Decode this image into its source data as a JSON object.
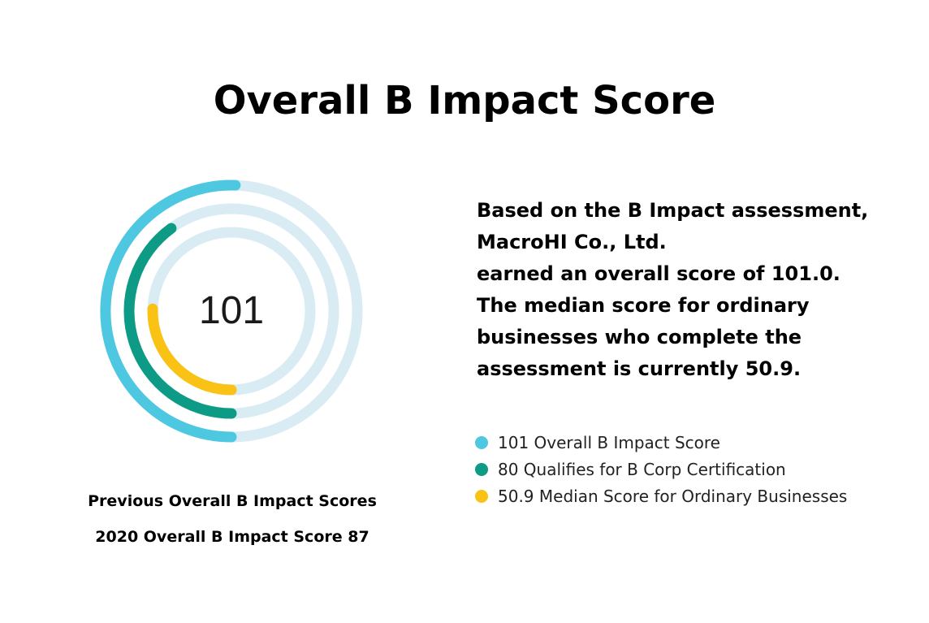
{
  "title": "Overall B Impact Score",
  "center_label": "101",
  "summary_lines": [
    "Based on the B Impact assessment,",
    "MacroHI Co., Ltd.",
    "earned an overall score of 101.0.",
    "The median score for ordinary",
    "businesses who complete the",
    "assessment is currently 50.9."
  ],
  "previous": {
    "heading": "Previous Overall B Impact Scores",
    "items": [
      "2020 Overall B Impact Score 87"
    ]
  },
  "legend": [
    {
      "label": "101 Overall B Impact Score",
      "color": "#4ec8e0"
    },
    {
      "label": "80 Qualifies for B Corp Certification",
      "color": "#0e9b85"
    },
    {
      "label": "50.9 Median Score for Ordinary Businesses",
      "color": "#f9c214"
    }
  ],
  "chart_data": {
    "type": "radial-bar",
    "max": 200,
    "track_color": "#d9ecf3",
    "series": [
      {
        "name": "Overall B Impact Score",
        "value": 101,
        "color": "#4ec8e0"
      },
      {
        "name": "Qualifies for B Corp Certification",
        "value": 80,
        "color": "#0e9b85"
      },
      {
        "name": "Median Score for Ordinary Businesses",
        "value": 50.9,
        "color": "#f9c214"
      }
    ]
  }
}
